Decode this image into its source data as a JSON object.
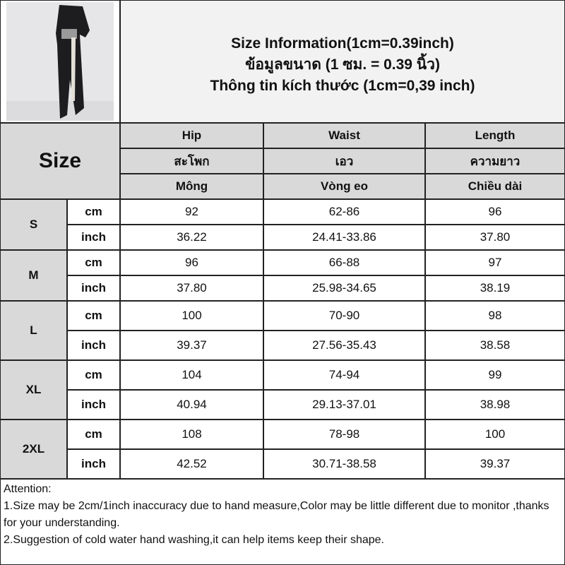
{
  "title": {
    "line1": "Size Information(1cm=0.39inch)",
    "line2": "ข้อมูลขนาด (1 ซม. = 0.39 นิ้ว)",
    "line3": "Thông tin kích thước (1cm=0,39 inch)"
  },
  "header": {
    "size_label": "Size",
    "columns": [
      {
        "en": "Hip",
        "th": "สะโพก",
        "vi": "Mông"
      },
      {
        "en": "Waist",
        "th": "เอว",
        "vi": "Vòng eo"
      },
      {
        "en": "Length",
        "th": "ความยาว",
        "vi": "Chiều dài"
      }
    ]
  },
  "rows": [
    {
      "size": "S",
      "cm": {
        "unit": "cm",
        "values": [
          "92",
          "62-86",
          "96"
        ]
      },
      "inch": {
        "unit": "inch",
        "values": [
          "36.22",
          "24.41-33.86",
          "37.80"
        ]
      }
    },
    {
      "size": "M",
      "cm": {
        "unit": "cm",
        "values": [
          "96",
          "66-88",
          "97"
        ]
      },
      "inch": {
        "unit": "inch",
        "values": [
          "37.80",
          "25.98-34.65",
          "38.19"
        ]
      }
    },
    {
      "size": "L",
      "cm": {
        "unit": "cm",
        "values": [
          "100",
          "70-90",
          "98"
        ]
      },
      "inch": {
        "unit": "inch",
        "values": [
          "39.37",
          "27.56-35.43",
          "38.58"
        ]
      }
    },
    {
      "size": "XL",
      "cm": {
        "unit": "cm",
        "values": [
          "104",
          "74-94",
          "99"
        ]
      },
      "inch": {
        "unit": "inch",
        "values": [
          "40.94",
          "29.13-37.01",
          "38.98"
        ]
      }
    },
    {
      "size": "2XL",
      "cm": {
        "unit": "cm",
        "values": [
          "108",
          "78-98",
          "100"
        ]
      },
      "inch": {
        "unit": "inch",
        "values": [
          "42.52",
          "30.71-38.58",
          "39.37"
        ]
      }
    }
  ],
  "attention": {
    "heading": "Attention:",
    "note1": "1.Size may be 2cm/1inch inaccuracy due to hand measure,Color may be little different due to monitor ,thanks for your understanding.",
    "note2": "2.Suggestion of cold water hand washing,it can help items keep their shape."
  }
}
